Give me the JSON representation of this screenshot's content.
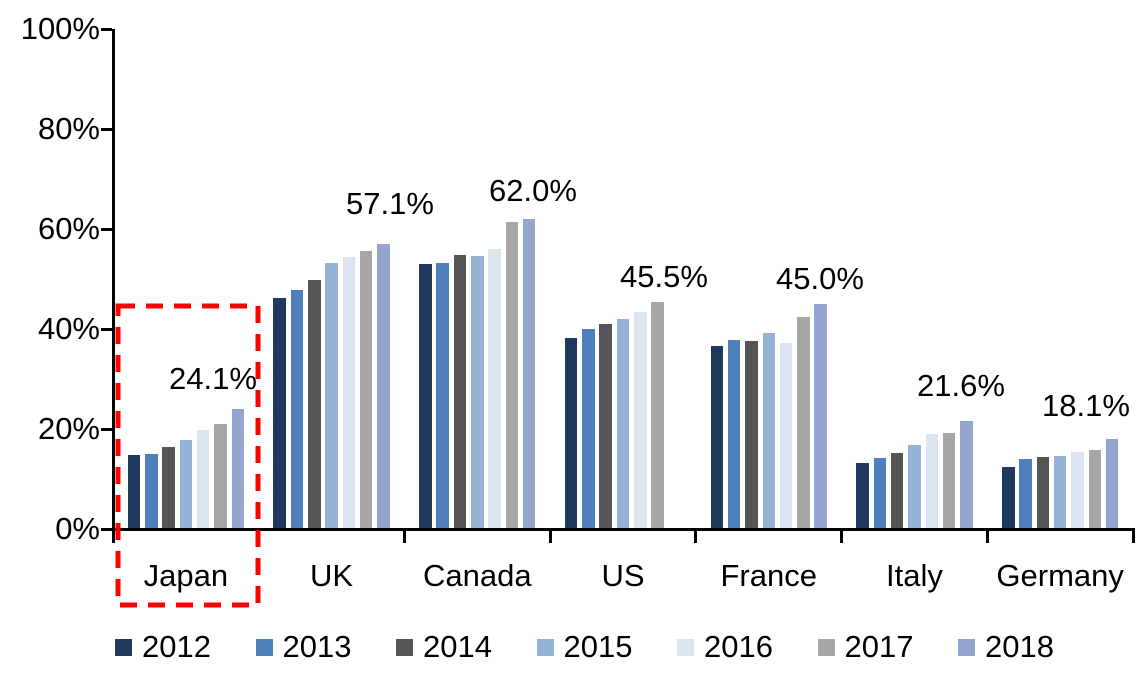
{
  "chart_data": {
    "type": "bar",
    "title": "",
    "xlabel": "",
    "ylabel": "",
    "ylim": [
      0,
      100
    ],
    "grid": false,
    "legend_position": "bottom",
    "y_ticks": [
      "0%",
      "20%",
      "40%",
      "60%",
      "80%",
      "100%"
    ],
    "categories": [
      "Japan",
      "UK",
      "Canada",
      "US",
      "France",
      "Italy",
      "Germany"
    ],
    "series": [
      {
        "name": "2012",
        "color": "#20395E",
        "values": [
          14.8,
          46.2,
          53.0,
          38.3,
          36.6,
          13.3,
          12.5
        ]
      },
      {
        "name": "2013",
        "color": "#4E80BC",
        "values": [
          15.0,
          47.8,
          53.3,
          40.0,
          37.8,
          14.2,
          14.0
        ]
      },
      {
        "name": "2014",
        "color": "#555555",
        "values": [
          16.5,
          49.8,
          54.8,
          41.0,
          37.6,
          15.2,
          14.4
        ]
      },
      {
        "name": "2015",
        "color": "#95B3D7",
        "values": [
          17.9,
          53.2,
          54.6,
          42.0,
          39.3,
          16.9,
          14.6
        ]
      },
      {
        "name": "2016",
        "color": "#DBE5F1",
        "values": [
          19.8,
          54.5,
          56.0,
          43.5,
          37.3,
          19.0,
          15.4
        ]
      },
      {
        "name": "2017",
        "color": "#A6A6A6",
        "values": [
          21.0,
          55.7,
          61.5,
          45.5,
          42.4,
          19.3,
          15.8
        ]
      },
      {
        "name": "2018",
        "color": "#94A5CF",
        "values": [
          24.1,
          57.1,
          62.0,
          null,
          45.0,
          21.6,
          18.1
        ]
      }
    ],
    "annotations": [
      {
        "category": "Japan",
        "label": "24.1%"
      },
      {
        "category": "UK",
        "label": "57.1%"
      },
      {
        "category": "Canada",
        "label": "62.0%"
      },
      {
        "category": "US",
        "label": "45.5%"
      },
      {
        "category": "France",
        "label": "45.0%"
      },
      {
        "category": "Italy",
        "label": "21.6%"
      },
      {
        "category": "Germany",
        "label": "18.1%"
      }
    ],
    "highlight": {
      "category": "Japan",
      "shape": "dashed-rectangle",
      "color": "#FF0000"
    }
  }
}
